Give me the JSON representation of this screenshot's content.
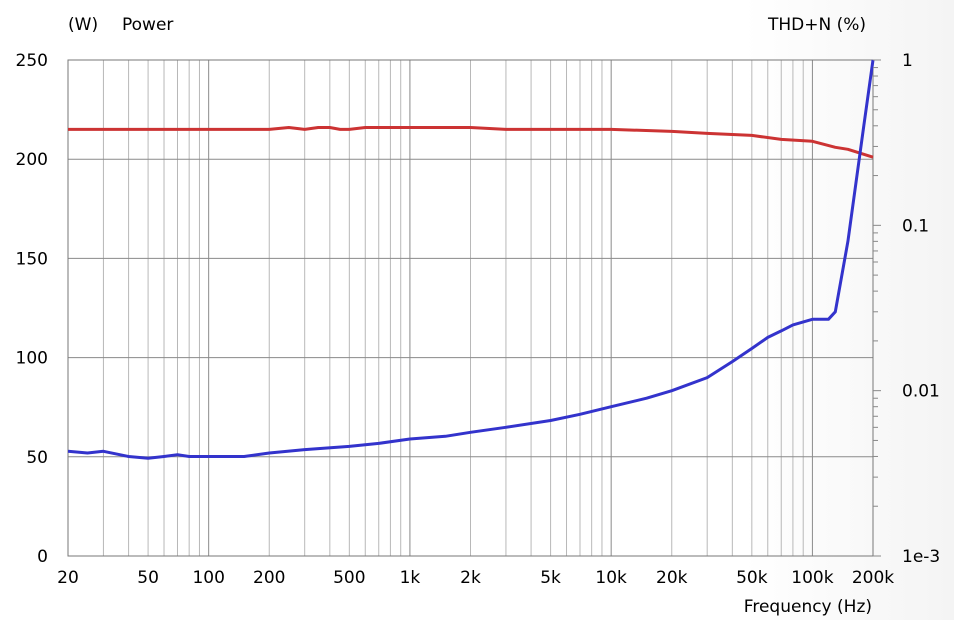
{
  "chart_data": {
    "type": "line",
    "xlabel": "Frequency  (Hz)",
    "x_scale": "log",
    "xlim": [
      20,
      200000
    ],
    "x_ticks": [
      {
        "value": 20,
        "label": "20"
      },
      {
        "value": 50,
        "label": "50"
      },
      {
        "value": 100,
        "label": "100"
      },
      {
        "value": 200,
        "label": "200"
      },
      {
        "value": 500,
        "label": "500"
      },
      {
        "value": 1000,
        "label": "1k"
      },
      {
        "value": 2000,
        "label": "2k"
      },
      {
        "value": 5000,
        "label": "5k"
      },
      {
        "value": 10000,
        "label": "10k"
      },
      {
        "value": 20000,
        "label": "20k"
      },
      {
        "value": 50000,
        "label": "50k"
      },
      {
        "value": 100000,
        "label": "100k"
      },
      {
        "value": 200000,
        "label": "200k"
      }
    ],
    "y_left": {
      "unit_label": "(W)",
      "label": "Power",
      "ylim": [
        0,
        250
      ],
      "ticks": [
        0,
        50,
        100,
        150,
        200,
        250
      ]
    },
    "y_right": {
      "label": "THD+N  (%)",
      "scale": "log",
      "ylim": [
        0.001,
        1
      ],
      "ticks": [
        {
          "value": 0.001,
          "label": "1e-3"
        },
        {
          "value": 0.01,
          "label": "0.01"
        },
        {
          "value": 0.1,
          "label": "0.1"
        },
        {
          "value": 1,
          "label": "1"
        }
      ]
    },
    "grid": true,
    "series": [
      {
        "axis": "left",
        "color": "#cc3333",
        "x": [
          20,
          50,
          100,
          200,
          250,
          300,
          350,
          400,
          450,
          500,
          600,
          1000,
          2000,
          3000,
          5000,
          10000,
          20000,
          30000,
          50000,
          70000,
          100000,
          130000,
          150000,
          200000
        ],
        "y": [
          215,
          215,
          215,
          215,
          216,
          215,
          216,
          216,
          215,
          215,
          216,
          216,
          216,
          215,
          215,
          215,
          214,
          213,
          212,
          210,
          209,
          206,
          205,
          201
        ]
      },
      {
        "axis": "right",
        "color": "#3333cc",
        "x": [
          20,
          25,
          30,
          40,
          50,
          60,
          70,
          80,
          100,
          150,
          200,
          300,
          500,
          700,
          1000,
          1500,
          2000,
          3000,
          5000,
          7000,
          10000,
          15000,
          20000,
          30000,
          40000,
          50000,
          60000,
          70000,
          80000,
          100000,
          120000,
          130000,
          150000,
          180000,
          200000
        ],
        "y": [
          0.0043,
          0.0042,
          0.0043,
          0.004,
          0.0039,
          0.004,
          0.0041,
          0.004,
          0.004,
          0.004,
          0.0042,
          0.0044,
          0.0046,
          0.0048,
          0.0051,
          0.0053,
          0.0056,
          0.006,
          0.0066,
          0.0072,
          0.008,
          0.009,
          0.01,
          0.012,
          0.015,
          0.018,
          0.021,
          0.023,
          0.025,
          0.027,
          0.027,
          0.03,
          0.08,
          0.4,
          1.0
        ]
      }
    ]
  }
}
